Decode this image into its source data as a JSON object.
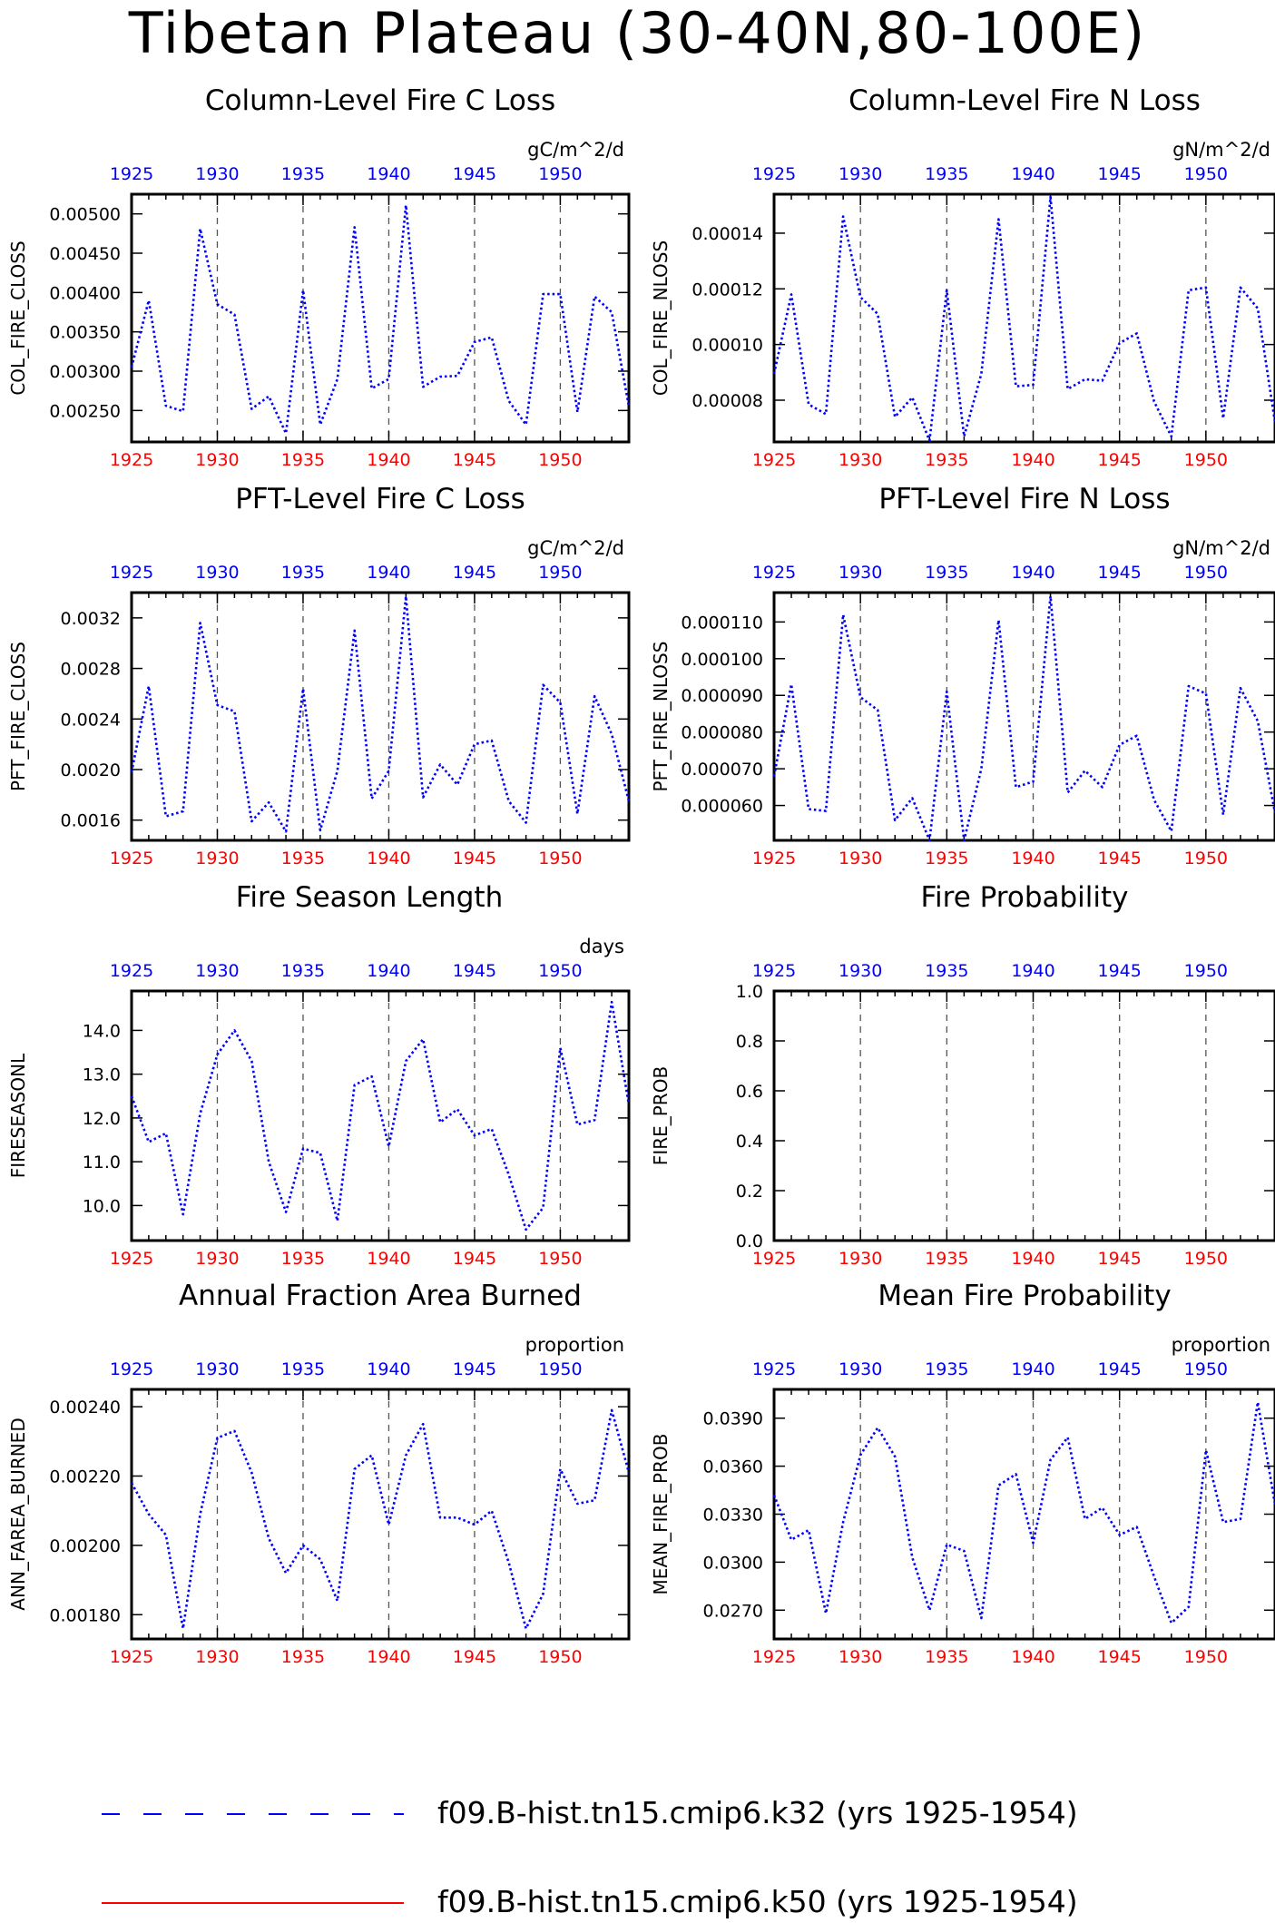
{
  "figure_title": "Tibetan Plateau (30-40N,80-100E)",
  "legend": [
    {
      "label": "f09.B-hist.tn15.cmip6.k32 (yrs 1925-1954)",
      "color": "#0000ff",
      "style": "dashed"
    },
    {
      "label": "f09.B-hist.tn15.cmip6.k50 (yrs 1925-1954)",
      "color": "#ff0000",
      "style": "solid"
    }
  ],
  "chart_data": [
    {
      "type": "line",
      "title": "Column-Level Fire C Loss",
      "units": "gC/m^2/d",
      "ylabel": "COL_FIRE_CLOSS",
      "xlim": [
        1925,
        1954
      ],
      "ylim": [
        0.0021,
        0.00525
      ],
      "xticks": [
        1925,
        1930,
        1935,
        1940,
        1945,
        1950
      ],
      "yticks": [
        0.0025,
        0.003,
        0.0035,
        0.004,
        0.0045,
        0.005
      ],
      "ytick_labels": [
        "0.00250",
        "0.00300",
        "0.00350",
        "0.00400",
        "0.00450",
        "0.00500"
      ],
      "vlines": [
        1930,
        1935,
        1940,
        1945,
        1950
      ],
      "x": [
        1925,
        1926,
        1927,
        1928,
        1929,
        1930,
        1931,
        1932,
        1933,
        1934,
        1935,
        1936,
        1937,
        1938,
        1939,
        1940,
        1941,
        1942,
        1943,
        1944,
        1945,
        1946,
        1947,
        1948,
        1949,
        1950,
        1951,
        1952,
        1953,
        1954
      ],
      "series": [
        {
          "name": "f09.B-hist.tn15.cmip6.k32 (yrs 1925-1954)",
          "values": [
            0.00305,
            0.0039,
            0.00256,
            0.00249,
            0.00481,
            0.00385,
            0.00372,
            0.00252,
            0.00268,
            0.00221,
            0.00403,
            0.00232,
            0.0029,
            0.00483,
            0.00278,
            0.0029,
            0.00511,
            0.0028,
            0.00293,
            0.00294,
            0.00337,
            0.00343,
            0.00262,
            0.00232,
            0.00398,
            0.00398,
            0.00248,
            0.00395,
            0.00375,
            0.00255
          ]
        }
      ]
    },
    {
      "type": "line",
      "title": "Column-Level Fire N Loss",
      "units": "gN/m^2/d",
      "ylabel": "COL_FIRE_NLOSS",
      "xlim": [
        1925,
        1954
      ],
      "ylim": [
        6.5e-05,
        0.000154
      ],
      "xticks": [
        1925,
        1930,
        1935,
        1940,
        1945,
        1950
      ],
      "yticks": [
        8e-05,
        0.0001,
        0.00012,
        0.00014
      ],
      "ytick_labels": [
        "0.00008",
        "0.00010",
        "0.00012",
        "0.00014"
      ],
      "vlines": [
        1930,
        1935,
        1940,
        1945,
        1950
      ],
      "x": [
        1925,
        1926,
        1927,
        1928,
        1929,
        1930,
        1931,
        1932,
        1933,
        1934,
        1935,
        1936,
        1937,
        1938,
        1939,
        1940,
        1941,
        1942,
        1943,
        1944,
        1945,
        1946,
        1947,
        1948,
        1949,
        1950,
        1951,
        1952,
        1953,
        1954
      ],
      "series": [
        {
          "name": "f09.B-hist.tn15.cmip6.k32 (yrs 1925-1954)",
          "values": [
            8.95e-05,
            0.000118,
            7.85e-05,
            7.5e-05,
            0.000146,
            0.000117,
            0.000111,
            7.4e-05,
            8.1e-05,
            6.55e-05,
            0.0001195,
            6.7e-05,
            8.95e-05,
            0.000145,
            8.5e-05,
            8.55e-05,
            0.000153,
            8.4e-05,
            8.75e-05,
            8.7e-05,
            0.0001005,
            0.000104,
            7.95e-05,
            6.7e-05,
            0.0001195,
            0.0001205,
            7.35e-05,
            0.0001205,
            0.000113,
            7.2e-05
          ]
        }
      ]
    },
    {
      "type": "line",
      "title": "PFT-Level Fire C Loss",
      "units": "gC/m^2/d",
      "ylabel": "PFT_FIRE_CLOSS",
      "xlim": [
        1925,
        1954
      ],
      "ylim": [
        0.00144,
        0.0034
      ],
      "xticks": [
        1925,
        1930,
        1935,
        1940,
        1945,
        1950
      ],
      "yticks": [
        0.0016,
        0.002,
        0.0024,
        0.0028,
        0.0032
      ],
      "ytick_labels": [
        "0.0016",
        "0.0020",
        "0.0024",
        "0.0028",
        "0.0032"
      ],
      "vlines": [
        1930,
        1935,
        1940,
        1945,
        1950
      ],
      "x": [
        1925,
        1926,
        1927,
        1928,
        1929,
        1930,
        1931,
        1932,
        1933,
        1934,
        1935,
        1936,
        1937,
        1938,
        1939,
        1940,
        1941,
        1942,
        1943,
        1944,
        1945,
        1946,
        1947,
        1948,
        1949,
        1950,
        1951,
        1952,
        1953,
        1954
      ],
      "series": [
        {
          "name": "f09.B-hist.tn15.cmip6.k32 (yrs 1925-1954)",
          "values": [
            0.00198,
            0.00266,
            0.00163,
            0.00167,
            0.00316,
            0.00251,
            0.00246,
            0.00159,
            0.00174,
            0.00151,
            0.00264,
            0.00152,
            0.00199,
            0.0031,
            0.00177,
            0.00199,
            0.00337,
            0.00178,
            0.00204,
            0.00188,
            0.0022,
            0.00223,
            0.00175,
            0.00158,
            0.00267,
            0.00253,
            0.00165,
            0.00258,
            0.00228,
            0.00175
          ]
        }
      ]
    },
    {
      "type": "line",
      "title": "PFT-Level Fire N Loss",
      "units": "gN/m^2/d",
      "ylabel": "PFT_FIRE_NLOSS",
      "xlim": [
        1925,
        1954
      ],
      "ylim": [
        5.05e-05,
        0.000118
      ],
      "xticks": [
        1925,
        1930,
        1935,
        1940,
        1945,
        1950
      ],
      "yticks": [
        6e-05,
        7e-05,
        8e-05,
        9e-05,
        0.0001,
        0.00011
      ],
      "ytick_labels": [
        "0.000060",
        "0.000070",
        "0.000080",
        "0.000090",
        "0.000100",
        "0.000110"
      ],
      "vlines": [
        1930,
        1935,
        1940,
        1945,
        1950
      ],
      "x": [
        1925,
        1926,
        1927,
        1928,
        1929,
        1930,
        1931,
        1932,
        1933,
        1934,
        1935,
        1936,
        1937,
        1938,
        1939,
        1940,
        1941,
        1942,
        1943,
        1944,
        1945,
        1946,
        1947,
        1948,
        1949,
        1950,
        1951,
        1952,
        1953,
        1954
      ],
      "series": [
        {
          "name": "f09.B-hist.tn15.cmip6.k32 (yrs 1925-1954)",
          "values": [
            6.8e-05,
            9.3e-05,
            5.9e-05,
            5.85e-05,
            0.000112,
            8.95e-05,
            8.6e-05,
            5.6e-05,
            6.2e-05,
            5.05e-05,
            9.1e-05,
            5.05e-05,
            7e-05,
            0.0001105,
            6.5e-05,
            6.65e-05,
            0.000117,
            6.35e-05,
            6.95e-05,
            6.5e-05,
            7.65e-05,
            7.9e-05,
            6.15e-05,
            5.3e-05,
            9.25e-05,
            9.05e-05,
            5.75e-05,
            9.2e-05,
            8.3e-05,
            5.8e-05
          ]
        }
      ]
    },
    {
      "type": "line",
      "title": "Fire Season Length",
      "units": "days",
      "ylabel": "FIRESEASONL",
      "xlim": [
        1925,
        1954
      ],
      "ylim": [
        9.2,
        14.9
      ],
      "xticks": [
        1925,
        1930,
        1935,
        1940,
        1945,
        1950
      ],
      "yticks": [
        10.0,
        11.0,
        12.0,
        13.0,
        14.0
      ],
      "ytick_labels": [
        "10.0",
        "11.0",
        "12.0",
        "13.0",
        "14.0"
      ],
      "vlines": [
        1930,
        1935,
        1940,
        1945,
        1950
      ],
      "x": [
        1925,
        1926,
        1927,
        1928,
        1929,
        1930,
        1931,
        1932,
        1933,
        1934,
        1935,
        1936,
        1937,
        1938,
        1939,
        1940,
        1941,
        1942,
        1943,
        1944,
        1945,
        1946,
        1947,
        1948,
        1949,
        1950,
        1951,
        1952,
        1953,
        1954
      ],
      "series": [
        {
          "name": "f09.B-hist.tn15.cmip6.k32 (yrs 1925-1954)",
          "values": [
            12.5,
            11.45,
            11.65,
            9.8,
            12.1,
            13.45,
            14.0,
            13.3,
            11.0,
            9.85,
            11.3,
            11.2,
            9.65,
            12.75,
            12.95,
            11.35,
            13.3,
            13.8,
            11.9,
            12.2,
            11.6,
            11.75,
            10.7,
            9.45,
            9.95,
            13.6,
            11.85,
            11.95,
            14.65,
            12.3
          ]
        }
      ]
    },
    {
      "type": "line",
      "title": "Fire Probability",
      "units": "",
      "ylabel": "FIRE_PROB",
      "xlim": [
        1925,
        1954
      ],
      "ylim": [
        0.0,
        1.0
      ],
      "xticks": [
        1925,
        1930,
        1935,
        1940,
        1945,
        1950
      ],
      "yticks": [
        0.0,
        0.2,
        0.4,
        0.6,
        0.8,
        1.0
      ],
      "ytick_labels": [
        "0.0",
        "0.2",
        "0.4",
        "0.6",
        "0.8",
        "1.0"
      ],
      "vlines": [
        1930,
        1935,
        1940,
        1945,
        1950
      ],
      "x": [],
      "series": []
    },
    {
      "type": "line",
      "title": "Annual Fraction Area Burned",
      "units": "proportion",
      "ylabel": "ANN_FAREA_BURNED",
      "xlim": [
        1925,
        1954
      ],
      "ylim": [
        0.00173,
        0.00245
      ],
      "xticks": [
        1925,
        1930,
        1935,
        1940,
        1945,
        1950
      ],
      "yticks": [
        0.0018,
        0.002,
        0.0022,
        0.0024
      ],
      "ytick_labels": [
        "0.00180",
        "0.00200",
        "0.00220",
        "0.00240"
      ],
      "vlines": [
        1930,
        1935,
        1940,
        1945,
        1950
      ],
      "x": [
        1925,
        1926,
        1927,
        1928,
        1929,
        1930,
        1931,
        1932,
        1933,
        1934,
        1935,
        1936,
        1937,
        1938,
        1939,
        1940,
        1941,
        1942,
        1943,
        1944,
        1945,
        1946,
        1947,
        1948,
        1949,
        1950,
        1951,
        1952,
        1953,
        1954
      ],
      "series": [
        {
          "name": "f09.B-hist.tn15.cmip6.k32 (yrs 1925-1954)",
          "values": [
            0.00218,
            0.00209,
            0.00203,
            0.00176,
            0.00209,
            0.00231,
            0.00233,
            0.00221,
            0.00202,
            0.00192,
            0.002,
            0.00196,
            0.00184,
            0.00222,
            0.00226,
            0.00206,
            0.00226,
            0.00235,
            0.00208,
            0.00208,
            0.00206,
            0.0021,
            0.00195,
            0.00176,
            0.00186,
            0.00222,
            0.00212,
            0.00213,
            0.00239,
            0.00221
          ]
        }
      ]
    },
    {
      "type": "line",
      "title": "Mean Fire Probability",
      "units": "proportion",
      "ylabel": "MEAN_FIRE_PROB",
      "xlim": [
        1925,
        1954
      ],
      "ylim": [
        0.0252,
        0.0408
      ],
      "xticks": [
        1925,
        1930,
        1935,
        1940,
        1945,
        1950
      ],
      "yticks": [
        0.027,
        0.03,
        0.033,
        0.036,
        0.039
      ],
      "ytick_labels": [
        "0.0270",
        "0.0300",
        "0.0330",
        "0.0360",
        "0.0390"
      ],
      "vlines": [
        1930,
        1935,
        1940,
        1945,
        1950
      ],
      "x": [
        1925,
        1926,
        1927,
        1928,
        1929,
        1930,
        1931,
        1932,
        1933,
        1934,
        1935,
        1936,
        1937,
        1938,
        1939,
        1940,
        1941,
        1942,
        1943,
        1944,
        1945,
        1946,
        1947,
        1948,
        1949,
        1950,
        1951,
        1952,
        1953,
        1954
      ],
      "series": [
        {
          "name": "f09.B-hist.tn15.cmip6.k32 (yrs 1925-1954)",
          "values": [
            0.0342,
            0.0314,
            0.032,
            0.0268,
            0.0325,
            0.0367,
            0.0384,
            0.0366,
            0.0303,
            0.027,
            0.0311,
            0.0307,
            0.0265,
            0.0348,
            0.0355,
            0.0312,
            0.0364,
            0.0378,
            0.0327,
            0.0334,
            0.0317,
            0.0322,
            0.0291,
            0.0262,
            0.0272,
            0.037,
            0.0325,
            0.0327,
            0.04,
            0.0336
          ]
        }
      ]
    }
  ]
}
